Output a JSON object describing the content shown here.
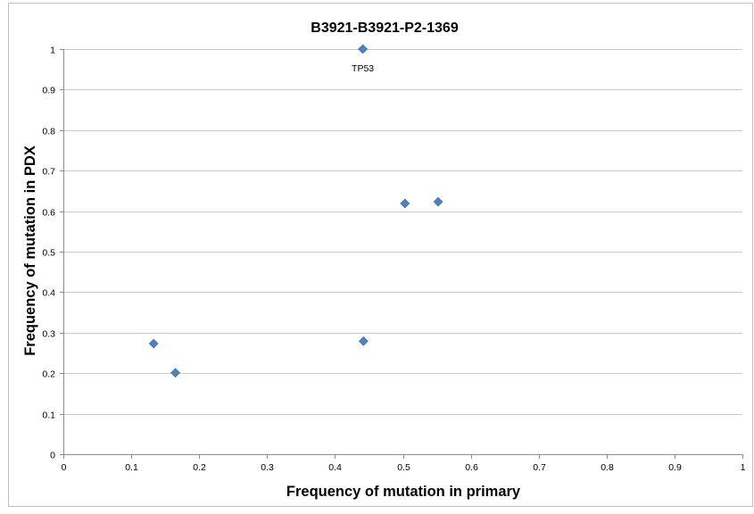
{
  "chart_data": {
    "type": "scatter",
    "title": "B3921-B3921-P2-1369",
    "xlabel": "Frequency of mutation in primary",
    "ylabel": "Frequency of mutation in PDX",
    "xlim": [
      0,
      1
    ],
    "ylim": [
      0,
      1
    ],
    "grid": "horizontal",
    "legend": "none",
    "x_ticks": [
      "0",
      "0.1",
      "0.2",
      "0.3",
      "0.4",
      "0.5",
      "0.6",
      "0.7",
      "0.8",
      "0.9",
      "1"
    ],
    "y_ticks": [
      "0",
      "0.1",
      "0.2",
      "0.3",
      "0.4",
      "0.5",
      "0.6",
      "0.7",
      "0.8",
      "0.9",
      "1"
    ],
    "marker_color": "#4f81bd",
    "points": [
      {
        "x": 0.441,
        "y": 1.0,
        "label": "TP53"
      },
      {
        "x": 0.503,
        "y": 0.619
      },
      {
        "x": 0.552,
        "y": 0.623
      },
      {
        "x": 0.133,
        "y": 0.273
      },
      {
        "x": 0.165,
        "y": 0.201
      },
      {
        "x": 0.442,
        "y": 0.279
      }
    ]
  }
}
